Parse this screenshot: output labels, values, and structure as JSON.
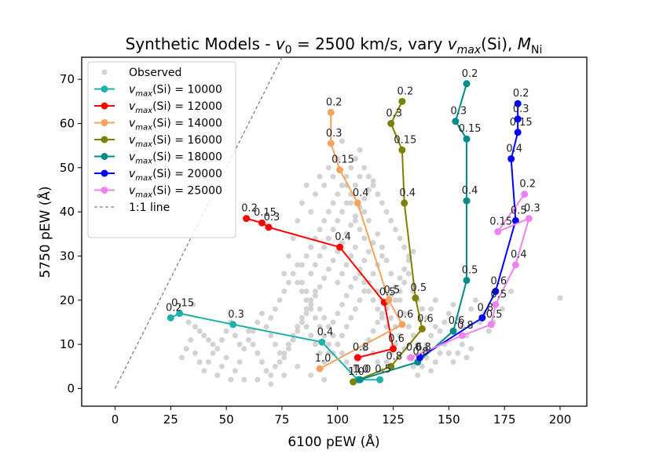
{
  "chart_data": {
    "type": "scatter",
    "title_prefix": "Synthetic Models - ",
    "title_v0": "v",
    "title_v0_sub": "0",
    "title_mid": " = 2500 km/s, vary ",
    "title_vmax": "v",
    "title_vmax_sub": "max",
    "title_si": "(Si), ",
    "title_m": "M",
    "title_m_sub": "Ni",
    "xlabel": "6100 pEW (Å)",
    "ylabel": "5750 pEW (Å)",
    "xlim": [
      -15,
      212
    ],
    "ylim": [
      -4,
      75
    ],
    "xticks": [
      0,
      25,
      50,
      75,
      100,
      125,
      150,
      175,
      200
    ],
    "yticks": [
      0,
      10,
      20,
      30,
      40,
      50,
      60,
      70
    ],
    "grid": false,
    "legend_position": "top-left",
    "observed": {
      "name": "Observed",
      "color": "#d3d3d3",
      "points": [
        [
          200,
          20.5
        ],
        [
          35,
          19
        ],
        [
          33,
          15
        ],
        [
          36,
          14
        ],
        [
          38,
          13
        ],
        [
          40,
          12
        ],
        [
          42,
          11
        ],
        [
          44,
          10
        ],
        [
          46,
          9
        ],
        [
          48,
          11
        ],
        [
          50,
          13
        ],
        [
          52,
          15
        ],
        [
          54,
          12
        ],
        [
          56,
          10
        ],
        [
          58,
          9
        ],
        [
          60,
          11
        ],
        [
          62,
          13
        ],
        [
          64,
          15
        ],
        [
          66,
          17
        ],
        [
          68,
          14
        ],
        [
          70,
          12
        ],
        [
          72,
          10
        ],
        [
          74,
          8
        ],
        [
          76,
          7
        ],
        [
          78,
          9
        ],
        [
          80,
          11
        ],
        [
          82,
          13
        ],
        [
          84,
          15
        ],
        [
          86,
          17
        ],
        [
          88,
          19
        ],
        [
          90,
          21
        ],
        [
          92,
          23
        ],
        [
          94,
          25
        ],
        [
          96,
          27
        ],
        [
          98,
          29
        ],
        [
          100,
          31
        ],
        [
          102,
          33
        ],
        [
          104,
          35
        ],
        [
          106,
          37
        ],
        [
          108,
          39
        ],
        [
          110,
          41
        ],
        [
          112,
          43
        ],
        [
          114,
          45
        ],
        [
          116,
          47
        ],
        [
          118,
          35
        ],
        [
          120,
          32
        ],
        [
          122,
          29
        ],
        [
          124,
          26
        ],
        [
          126,
          23
        ],
        [
          128,
          20
        ],
        [
          130,
          17
        ],
        [
          132,
          14
        ],
        [
          134,
          12
        ],
        [
          136,
          10
        ],
        [
          138,
          8
        ],
        [
          140,
          10
        ],
        [
          142,
          12
        ],
        [
          144,
          14
        ],
        [
          146,
          13
        ],
        [
          148,
          15
        ],
        [
          150,
          17
        ],
        [
          152,
          19
        ],
        [
          154,
          16
        ],
        [
          156,
          14
        ],
        [
          158,
          12
        ],
        [
          160,
          18
        ],
        [
          162,
          20
        ],
        [
          164,
          15
        ],
        [
          166,
          17
        ],
        [
          168,
          13
        ],
        [
          60,
          13
        ],
        [
          62,
          10
        ],
        [
          64,
          8
        ],
        [
          66,
          6
        ],
        [
          68,
          4
        ],
        [
          70,
          3
        ],
        [
          72,
          5
        ],
        [
          74,
          6
        ],
        [
          76,
          8
        ],
        [
          78,
          10
        ],
        [
          80,
          12
        ],
        [
          82,
          14
        ],
        [
          84,
          16
        ],
        [
          86,
          18
        ],
        [
          88,
          20
        ],
        [
          90,
          22
        ],
        [
          92,
          18
        ],
        [
          94,
          16
        ],
        [
          96,
          14
        ],
        [
          98,
          12
        ],
        [
          100,
          10
        ],
        [
          102,
          8
        ],
        [
          104,
          6
        ],
        [
          106,
          4
        ],
        [
          108,
          5
        ],
        [
          110,
          7
        ],
        [
          112,
          9
        ],
        [
          114,
          11
        ],
        [
          116,
          13
        ],
        [
          118,
          15
        ],
        [
          120,
          17
        ],
        [
          122,
          19
        ],
        [
          124,
          21
        ],
        [
          126,
          23
        ],
        [
          128,
          25
        ],
        [
          130,
          27
        ],
        [
          132,
          29
        ],
        [
          134,
          31
        ],
        [
          84,
          28
        ],
        [
          86,
          30
        ],
        [
          88,
          32
        ],
        [
          90,
          34
        ],
        [
          92,
          36
        ],
        [
          94,
          38
        ],
        [
          96,
          40
        ],
        [
          98,
          42
        ],
        [
          100,
          44
        ],
        [
          102,
          46
        ],
        [
          104,
          48
        ],
        [
          106,
          50
        ],
        [
          108,
          52
        ],
        [
          110,
          54
        ],
        [
          112,
          50
        ],
        [
          114,
          48
        ],
        [
          116,
          46
        ],
        [
          118,
          44
        ],
        [
          120,
          42
        ],
        [
          122,
          40
        ],
        [
          124,
          38
        ],
        [
          126,
          36
        ],
        [
          128,
          34
        ],
        [
          130,
          32
        ],
        [
          132,
          30
        ],
        [
          82,
          24
        ],
        [
          84,
          22
        ],
        [
          86,
          20
        ],
        [
          88,
          18
        ],
        [
          90,
          16
        ],
        [
          92,
          14
        ],
        [
          94,
          12
        ],
        [
          96,
          10
        ],
        [
          98,
          8
        ],
        [
          100,
          10
        ],
        [
          102,
          12
        ],
        [
          104,
          14
        ],
        [
          106,
          16
        ],
        [
          108,
          18
        ],
        [
          110,
          20
        ],
        [
          112,
          22
        ],
        [
          114,
          24
        ],
        [
          116,
          26
        ],
        [
          118,
          28
        ],
        [
          120,
          30
        ],
        [
          76,
          26
        ],
        [
          78,
          30
        ],
        [
          80,
          34
        ],
        [
          82,
          38
        ],
        [
          84,
          42
        ],
        [
          86,
          46
        ],
        [
          88,
          40
        ],
        [
          90,
          44
        ],
        [
          92,
          48
        ],
        [
          94,
          46
        ],
        [
          96,
          50
        ],
        [
          98,
          48
        ],
        [
          100,
          52
        ],
        [
          102,
          56
        ],
        [
          104,
          46
        ],
        [
          106,
          42
        ],
        [
          108,
          38
        ],
        [
          110,
          36
        ],
        [
          112,
          34
        ],
        [
          30,
          7
        ],
        [
          32,
          9
        ],
        [
          34,
          11
        ],
        [
          36,
          8
        ],
        [
          38,
          6
        ],
        [
          40,
          4
        ],
        [
          42,
          6
        ],
        [
          44,
          8
        ],
        [
          46,
          3
        ],
        [
          48,
          5
        ],
        [
          50,
          7
        ],
        [
          52,
          2
        ],
        [
          54,
          4
        ],
        [
          56,
          6
        ],
        [
          58,
          2
        ],
        [
          64,
          2
        ],
        [
          70,
          1
        ],
        [
          76,
          3
        ],
        [
          82,
          5
        ],
        [
          88,
          3
        ],
        [
          94,
          2
        ],
        [
          116,
          8
        ],
        [
          118,
          6
        ],
        [
          120,
          4
        ],
        [
          122,
          6
        ],
        [
          124,
          8
        ],
        [
          126,
          10
        ],
        [
          128,
          12
        ],
        [
          130,
          9
        ],
        [
          132,
          7
        ],
        [
          134,
          5
        ],
        [
          136,
          3
        ],
        [
          138,
          5
        ],
        [
          140,
          7
        ],
        [
          142,
          4
        ],
        [
          144,
          6
        ],
        [
          146,
          8
        ],
        [
          148,
          10
        ],
        [
          150,
          8
        ],
        [
          152,
          6
        ],
        [
          154,
          8
        ],
        [
          156,
          10
        ],
        [
          158,
          7
        ],
        [
          160,
          9
        ],
        [
          170,
          15
        ],
        [
          174,
          18
        ],
        [
          178,
          22
        ],
        [
          86,
          14
        ],
        [
          88,
          12
        ],
        [
          90,
          10
        ],
        [
          92,
          8
        ],
        [
          94,
          6
        ],
        [
          96,
          8
        ],
        [
          98,
          15
        ],
        [
          100,
          17
        ],
        [
          102,
          19
        ],
        [
          104,
          21
        ],
        [
          106,
          23
        ],
        [
          108,
          25
        ],
        [
          110,
          27
        ],
        [
          112,
          29
        ],
        [
          114,
          31
        ],
        [
          116,
          33
        ],
        [
          118,
          22
        ],
        [
          120,
          20
        ],
        [
          122,
          18
        ],
        [
          124,
          16
        ],
        [
          126,
          14
        ],
        [
          70,
          16
        ],
        [
          72,
          18
        ],
        [
          74,
          20
        ],
        [
          76,
          22
        ],
        [
          78,
          24
        ],
        [
          80,
          26
        ],
        [
          82,
          28
        ],
        [
          84,
          24
        ],
        [
          86,
          22
        ],
        [
          88,
          26
        ],
        [
          90,
          28
        ],
        [
          92,
          30
        ],
        [
          94,
          32
        ],
        [
          96,
          34
        ],
        [
          98,
          36
        ],
        [
          100,
          38
        ],
        [
          102,
          40
        ],
        [
          104,
          42
        ],
        [
          106,
          44
        ],
        [
          108,
          46
        ],
        [
          110,
          48
        ],
        [
          112,
          40
        ],
        [
          114,
          38
        ],
        [
          100,
          24
        ],
        [
          102,
          26
        ],
        [
          104,
          28
        ],
        [
          106,
          30
        ],
        [
          108,
          32
        ],
        [
          110,
          26
        ],
        [
          112,
          24
        ],
        [
          114,
          22
        ],
        [
          116,
          20
        ],
        [
          118,
          18
        ],
        [
          120,
          16
        ],
        [
          122,
          14
        ],
        [
          124,
          12
        ],
        [
          126,
          20
        ],
        [
          128,
          22
        ],
        [
          130,
          24
        ],
        [
          132,
          26
        ],
        [
          134,
          22
        ],
        [
          136,
          20
        ],
        [
          138,
          18
        ],
        [
          140,
          16
        ],
        [
          142,
          18
        ],
        [
          144,
          20
        ]
      ]
    },
    "series": [
      {
        "name": "10000",
        "color": "#20b2aa",
        "points": [
          [
            25,
            16
          ],
          [
            29,
            17
          ],
          [
            53,
            14.5
          ],
          [
            93,
            10.5
          ],
          [
            109,
            2
          ],
          [
            119,
            2
          ]
        ],
        "labels": [
          "0.2",
          "0.15",
          "0.3",
          "0.4",
          "1.0",
          "0.5"
        ]
      },
      {
        "name": "12000",
        "color": "#ff0000",
        "points": [
          [
            59,
            38.5
          ],
          [
            66,
            37.5
          ],
          [
            69,
            36.5
          ],
          [
            101,
            32
          ],
          [
            121,
            19.5
          ],
          [
            125,
            9
          ],
          [
            109,
            7
          ]
        ],
        "labels": [
          "0.2",
          "0.15",
          "0.3",
          "0.4",
          "0.5",
          "0.6",
          "0.8"
        ]
      },
      {
        "name": "14000",
        "color": "#f4a460",
        "points": [
          [
            97,
            62.5
          ],
          [
            97,
            55.5
          ],
          [
            101,
            49.5
          ],
          [
            109,
            42
          ],
          [
            123,
            20
          ],
          [
            129,
            14.5
          ],
          [
            92,
            4.5
          ]
        ],
        "labels": [
          "0.2",
          "0.3",
          "0.15",
          "0.4",
          "0.5",
          "0.6",
          "1.0"
        ]
      },
      {
        "name": "16000",
        "color": "#808000",
        "points": [
          [
            129,
            65
          ],
          [
            124,
            60
          ],
          [
            129,
            54
          ],
          [
            130,
            42
          ],
          [
            135,
            20.5
          ],
          [
            138,
            13.5
          ],
          [
            124,
            5
          ],
          [
            107,
            1.5
          ]
        ],
        "labels": [
          "0.2",
          "0.3",
          "0.15",
          "0.4",
          "0.5",
          "0.6",
          "0.8",
          "1.0"
        ]
      },
      {
        "name": "18000",
        "color": "#008b8b",
        "points": [
          [
            158,
            69
          ],
          [
            153,
            60.5
          ],
          [
            158,
            56.5
          ],
          [
            158,
            42.5
          ],
          [
            158,
            24.5
          ],
          [
            152,
            13
          ],
          [
            136,
            6
          ],
          [
            110,
            2
          ]
        ],
        "labels": [
          "0.2",
          "0.3",
          "0.15",
          "0.4",
          "0.5",
          "0.6",
          "0.8",
          "1.0"
        ]
      },
      {
        "name": "20000",
        "color": "#0000ff",
        "points": [
          [
            181,
            64.5
          ],
          [
            181,
            61
          ],
          [
            181,
            58
          ],
          [
            178,
            52
          ],
          [
            180,
            38
          ],
          [
            171,
            22
          ],
          [
            165,
            16
          ],
          [
            137,
            7
          ]
        ],
        "labels": [
          "0.2",
          "0.3",
          "0.15",
          "0.4",
          "0.5",
          "0.6",
          "0.8",
          "0.8"
        ]
      },
      {
        "name": "25000",
        "color": "#ee82ee",
        "points": [
          [
            184,
            44
          ],
          [
            172,
            35.5
          ],
          [
            186,
            38.5
          ],
          [
            180,
            28
          ],
          [
            171,
            19
          ],
          [
            169,
            14.5
          ],
          [
            156,
            12
          ],
          [
            133,
            7
          ]
        ],
        "labels": [
          "0.2",
          "0.15",
          "0.3",
          "0.4",
          "0.5",
          "0.5",
          "0.8",
          "0.6"
        ]
      }
    ],
    "one_to_one": {
      "name": "1:1 line",
      "color": "#808080",
      "x": [
        0,
        75
      ]
    },
    "legend_label_prefix": "v",
    "legend_label_sub": "max",
    "legend_label_mid": "(Si) = "
  }
}
